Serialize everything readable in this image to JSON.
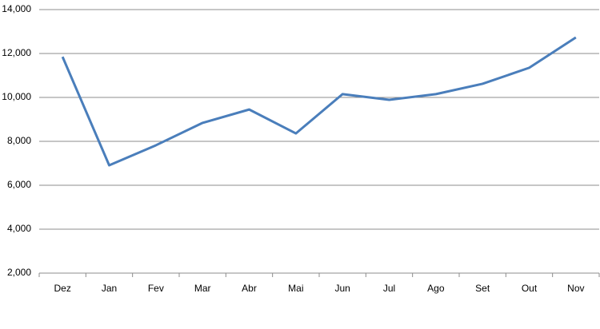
{
  "chart_data": {
    "type": "line",
    "categories": [
      "Dez",
      "Jan",
      "Fev",
      "Mar",
      "Abr",
      "Mai",
      "Jun",
      "Jul",
      "Ago",
      "Set",
      "Out",
      "Nov"
    ],
    "values": [
      11850,
      6910,
      7820,
      8840,
      9450,
      8360,
      10150,
      9890,
      10150,
      10620,
      11350,
      12730
    ],
    "color": "#4a7ebb",
    "ylim": [
      2000,
      14000
    ],
    "yticks": [
      {
        "value": 2000,
        "label": "2,000"
      },
      {
        "value": 4000,
        "label": "4,000"
      },
      {
        "value": 6000,
        "label": "6,000"
      },
      {
        "value": 8000,
        "label": "8,000"
      },
      {
        "value": 10000,
        "label": "10,000"
      },
      {
        "value": 12000,
        "label": "12,000"
      },
      {
        "value": 14000,
        "label": "14,000"
      }
    ],
    "grid": true
  }
}
